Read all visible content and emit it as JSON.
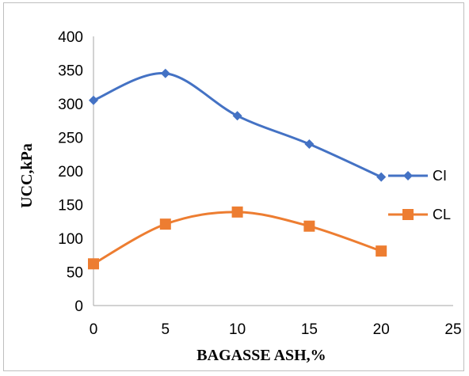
{
  "chart_data": {
    "type": "line",
    "title": "",
    "xlabel": "BAGASSE ASH,%",
    "ylabel": "UCC,kPa",
    "xlim": [
      0,
      25
    ],
    "ylim": [
      0,
      400
    ],
    "x_ticks": [
      0,
      5,
      10,
      15,
      20,
      25
    ],
    "y_ticks": [
      0,
      50,
      100,
      150,
      200,
      250,
      300,
      350,
      400
    ],
    "grid": false,
    "smooth": true,
    "legend_position": "right",
    "series": [
      {
        "name": "CI",
        "color": "#4472c4",
        "marker": "diamond",
        "x": [
          0,
          5,
          10,
          15,
          20
        ],
        "y": [
          305,
          345,
          282,
          240,
          191
        ]
      },
      {
        "name": "CL",
        "color": "#ed7d31",
        "marker": "square",
        "x": [
          0,
          5,
          10,
          15,
          20
        ],
        "y": [
          62,
          121,
          139,
          118,
          81
        ]
      }
    ]
  }
}
